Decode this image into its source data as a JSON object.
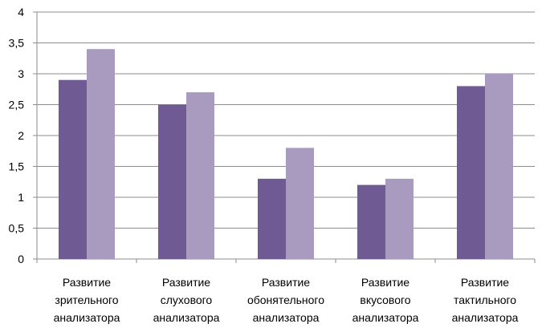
{
  "chart_data": {
    "type": "bar",
    "categories": [
      [
        "Развитие",
        "зрительного",
        "анализатора"
      ],
      [
        "Развитие",
        "слухового",
        "анализатора"
      ],
      [
        "Развитие",
        "обонятельного",
        "анализатора"
      ],
      [
        "Развитие",
        "вкусового",
        "анализатора"
      ],
      [
        "Развитие",
        "тактильного",
        "анализатора"
      ]
    ],
    "series": [
      {
        "values": [
          2.9,
          2.5,
          1.3,
          1.2,
          2.8
        ],
        "color": "#6f5a94"
      },
      {
        "values": [
          3.4,
          2.7,
          1.8,
          1.3,
          3.0
        ],
        "color": "#a89bbf"
      }
    ],
    "yticks": [
      "0",
      "0,5",
      "1",
      "1,5",
      "2",
      "2,5",
      "3",
      "3,5",
      "4"
    ],
    "ylim": [
      0,
      4
    ],
    "grid": true,
    "legend": "none"
  }
}
